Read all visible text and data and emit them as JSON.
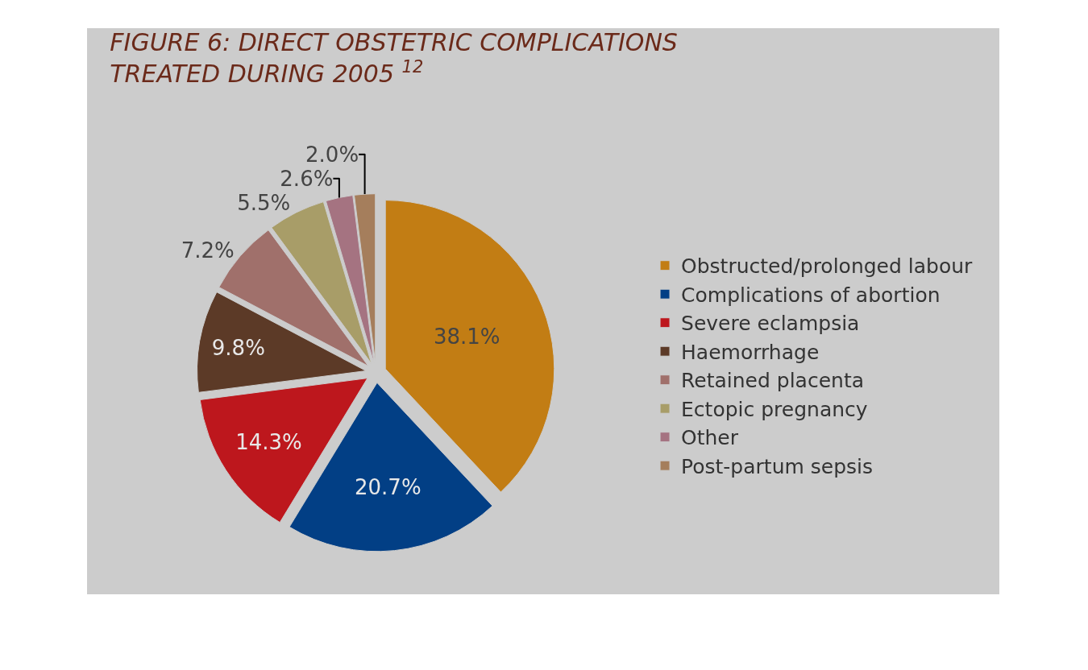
{
  "chart_data": {
    "type": "pie",
    "title": "FIGURE 6: DIRECT OBSTETRIC COMPLICATIONS\nTREATED DURING 2005 $^{12}$",
    "categories": [
      "Obstructed/prolonged labour",
      "Complications of abortion",
      "Severe eclampsia",
      "Haemorrhage",
      "Retained placenta",
      "Ectopic pregnancy",
      "Other",
      "Post-partum sepsis"
    ],
    "values": [
      38.1,
      20.7,
      14.3,
      9.8,
      7.2,
      5.5,
      2.6,
      2.0
    ],
    "value_labels": [
      "38.1%",
      "20.7%",
      "14.3%",
      "9.8%",
      "7.2%",
      "5.5%",
      "2.6%",
      "2.0%"
    ],
    "colors": [
      "#c27d14",
      "#023f85",
      "#bd171d",
      "#5c3a27",
      "#a0706b",
      "#a89d68",
      "#a57381",
      "#a57e5c"
    ],
    "legend": "right"
  }
}
